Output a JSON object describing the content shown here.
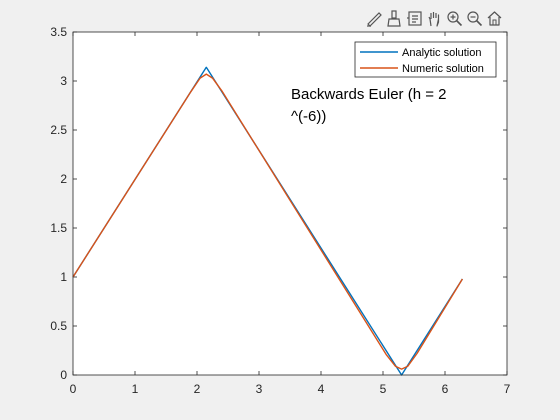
{
  "toolbar": {
    "icons": [
      "edit-plot-icon",
      "brush-icon",
      "data-tips-icon",
      "pan-hand-icon",
      "zoom-in-icon",
      "zoom-out-icon",
      "home-icon"
    ]
  },
  "chart_data": {
    "type": "line",
    "title": "",
    "xlabel": "",
    "ylabel": "",
    "xlim": [
      0,
      7
    ],
    "ylim": [
      0,
      3.5
    ],
    "xticks": [
      0,
      1,
      2,
      3,
      4,
      5,
      6,
      7
    ],
    "yticks": [
      0,
      0.5,
      1,
      1.5,
      2,
      2.5,
      3,
      3.5
    ],
    "xtick_labels": [
      "0",
      "1",
      "2",
      "3",
      "4",
      "5",
      "6",
      "7"
    ],
    "ytick_labels": [
      "0",
      "0.5",
      "1",
      "1.5",
      "2",
      "2.5",
      "3",
      "3.5"
    ],
    "grid": false,
    "legend_position": "top-right",
    "annotation": "Backwards Euler (h = 2 ^(-6))",
    "series": [
      {
        "name": "Analytic solution",
        "color": "#0072BD",
        "x": [
          0,
          2.15,
          5.3,
          6.28
        ],
        "y": [
          1,
          3.14,
          0,
          0.98
        ]
      },
      {
        "name": "Numeric solution",
        "color": "#D95319",
        "x": [
          0,
          1.9,
          2.05,
          2.15,
          2.25,
          2.4,
          5.05,
          5.2,
          5.3,
          5.4,
          5.55,
          6.28
        ],
        "y": [
          1,
          2.89,
          3.03,
          3.07,
          3.03,
          2.9,
          0.21,
          0.09,
          0.06,
          0.09,
          0.22,
          0.98
        ]
      }
    ]
  }
}
